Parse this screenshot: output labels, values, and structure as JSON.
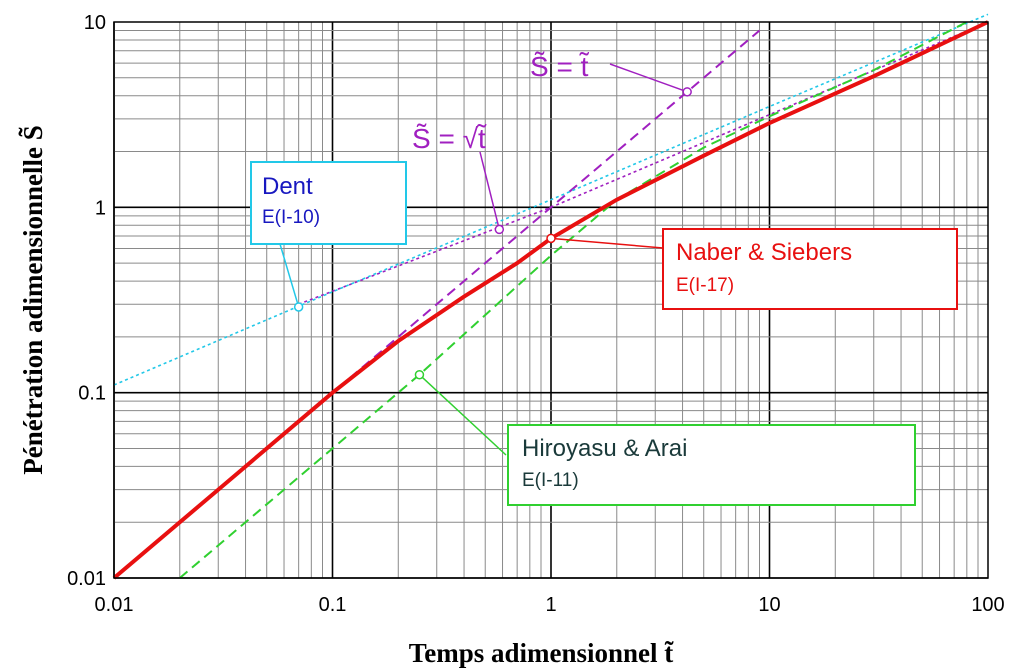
{
  "chart_data": {
    "type": "line",
    "xscale": "log",
    "yscale": "log",
    "xlim": [
      0.01,
      100
    ],
    "ylim": [
      0.01,
      10
    ],
    "grid": true,
    "xlabel": "Temps adimensionnel t̃",
    "ylabel": "Pénétration adimensionnelle S̃",
    "x_ticks": [
      "0.01",
      "0.1",
      "1",
      "10",
      "100"
    ],
    "y_ticks": [
      "0.01",
      "0.1",
      "1",
      "10"
    ],
    "series": [
      {
        "name": "Dent",
        "label": "Dent",
        "ref": "E(I-10)",
        "color": "#22c8e8",
        "style": "dotted",
        "x": [
          0.01,
          0.1,
          1,
          10,
          100
        ],
        "y": [
          0.11,
          0.35,
          1.1,
          3.5,
          11
        ]
      },
      {
        "name": "Naber & Siebers",
        "label": "Naber & Siebers",
        "ref": "E(I-17)",
        "color": "#e81010",
        "style": "solid",
        "x": [
          0.01,
          0.03,
          0.1,
          0.2,
          0.4,
          0.7,
          1,
          2,
          5,
          10,
          30,
          100
        ],
        "y": [
          0.01,
          0.03,
          0.1,
          0.19,
          0.33,
          0.5,
          0.68,
          1.1,
          1.9,
          2.85,
          5.1,
          10
        ]
      },
      {
        "name": "Hiroyasu & Arai",
        "label": "Hiroyasu & Arai",
        "ref": "E(I-11)",
        "color": "#30d030",
        "style": "dashed",
        "x": [
          0.02,
          0.1,
          0.25,
          1,
          2,
          5,
          10,
          30,
          80
        ],
        "y": [
          0.01,
          0.05,
          0.125,
          0.55,
          1.1,
          2.1,
          3.1,
          5.5,
          10
        ]
      },
      {
        "name": "S = t",
        "color": "#a020c0",
        "style": "dashed",
        "x": [
          0.12,
          1,
          4.2,
          9
        ],
        "y": [
          0.12,
          1,
          4.2,
          9
        ]
      },
      {
        "name": "S = sqrt(t)",
        "color": "#a020c0",
        "style": "dotted",
        "x": [
          0.07,
          1,
          100
        ],
        "y": [
          0.3,
          1,
          10
        ]
      }
    ],
    "annotations": [
      {
        "text": "S̃ = t̃",
        "color": "#a020c0"
      },
      {
        "text": "S̃ = √t̃",
        "color": "#a020c0"
      }
    ]
  }
}
